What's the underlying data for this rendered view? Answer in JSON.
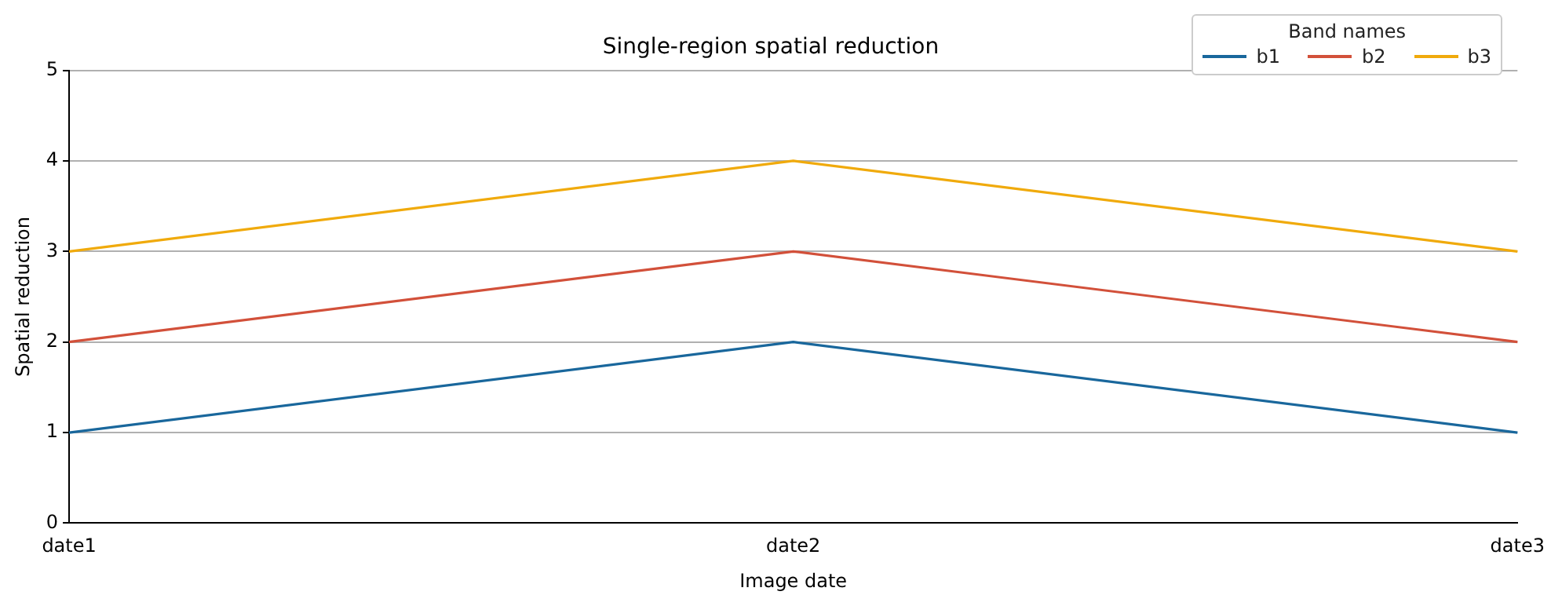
{
  "chart_data": {
    "type": "line",
    "title": "Single-region spatial reduction",
    "xlabel": "Image date",
    "ylabel": "Spatial reduction",
    "legend_title": "Band names",
    "categories": [
      "date1",
      "date2",
      "date3"
    ],
    "series": [
      {
        "name": "b1",
        "color": "#19679c",
        "values": [
          1,
          2,
          1
        ]
      },
      {
        "name": "b2",
        "color": "#d2503a",
        "values": [
          2,
          3,
          2
        ]
      },
      {
        "name": "b3",
        "color": "#f0aa0c",
        "values": [
          3,
          4,
          3
        ]
      }
    ],
    "ylim": [
      0,
      5
    ],
    "yticks": [
      0,
      1,
      2,
      3,
      4,
      5
    ],
    "grid": "y",
    "legend": "top right",
    "marker": "none",
    "line_style": "solid"
  }
}
